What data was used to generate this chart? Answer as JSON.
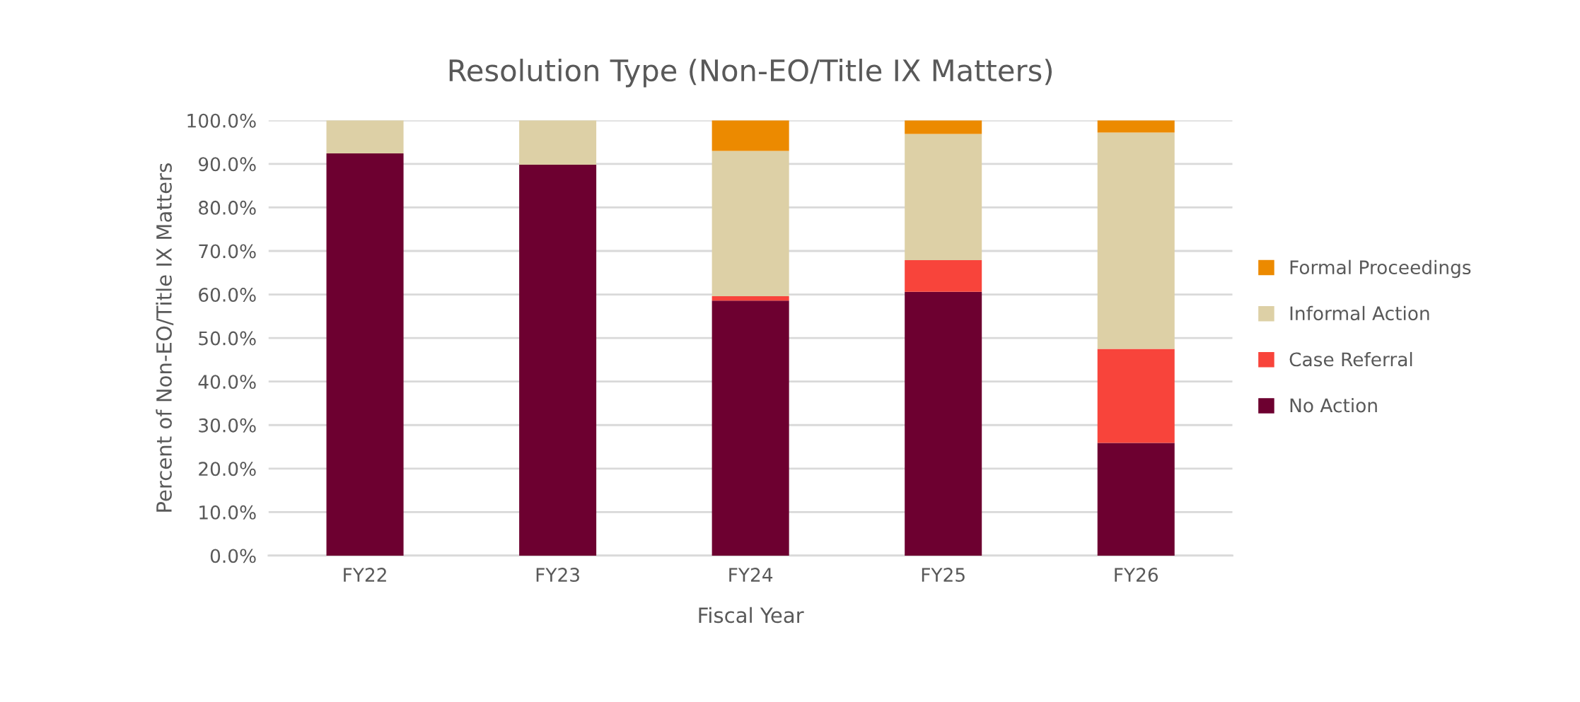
{
  "chart_data": {
    "type": "bar",
    "title": "Resolution Type (Non-EO/Title IX Matters)",
    "xlabel": "Fiscal Year",
    "ylabel": "Percent of Non-EO/Title IX Matters",
    "categories": [
      "FY22",
      "FY23",
      "FY24",
      "FY25",
      "FY26"
    ],
    "stacked": true,
    "series": [
      {
        "name": "No Action",
        "color": "#6d0030",
        "values": [
          92.4,
          89.8,
          58.6,
          60.6,
          25.9
        ]
      },
      {
        "name": "Case Referral",
        "color": "#f8443b",
        "values": [
          0,
          0,
          1.0,
          7.3,
          21.6
        ]
      },
      {
        "name": "Informal Action",
        "color": "#ddd0a6",
        "values": [
          7.6,
          10.2,
          33.4,
          29.0,
          49.7
        ]
      },
      {
        "name": "Formal Proceedings",
        "color": "#ec8a00",
        "values": [
          0,
          0,
          7.0,
          3.1,
          2.8
        ]
      }
    ],
    "ylim": [
      0,
      100
    ],
    "yticks": [
      {
        "value": 0,
        "label": "0.0%"
      },
      {
        "value": 10,
        "label": "10.0%"
      },
      {
        "value": 20,
        "label": "20.0%"
      },
      {
        "value": 30,
        "label": "30.0%"
      },
      {
        "value": 40,
        "label": "40.0%"
      },
      {
        "value": 50,
        "label": "50.0%"
      },
      {
        "value": 60,
        "label": "60.0%"
      },
      {
        "value": 70,
        "label": "70.0%"
      },
      {
        "value": 80,
        "label": "80.0%"
      },
      {
        "value": 90,
        "label": "90.0%"
      },
      {
        "value": 100,
        "label": "100.0%"
      }
    ],
    "grid": "y",
    "legend": "right"
  }
}
